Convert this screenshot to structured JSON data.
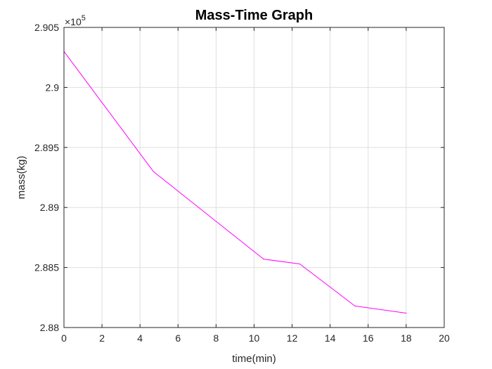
{
  "chart_data": {
    "type": "line",
    "title": "Mass-Time Graph",
    "xlabel": "time(min)",
    "ylabel": "mass(kg)",
    "xlim": [
      0,
      20
    ],
    "ylim": [
      2.88,
      2.905
    ],
    "xticks": [
      0,
      2,
      4,
      6,
      8,
      10,
      12,
      14,
      16,
      18,
      20
    ],
    "xtick_labels": [
      "0",
      "2",
      "4",
      "6",
      "8",
      "10",
      "12",
      "14",
      "16",
      "18",
      "20"
    ],
    "yticks": [
      2.88,
      2.885,
      2.89,
      2.895,
      2.9,
      2.905
    ],
    "ytick_labels": [
      "2.88",
      "2.885",
      "2.89",
      "2.895",
      "2.9",
      "2.905"
    ],
    "y_exponent_label": "×10",
    "y_exponent_power": "5",
    "grid": true,
    "box": true,
    "series": [
      {
        "color": "#ff00ff",
        "x": [
          0,
          4.7,
          10.5,
          12.4,
          15.3,
          18
        ],
        "y": [
          2.903,
          2.893,
          2.8857,
          2.8853,
          2.8818,
          2.8812
        ]
      }
    ]
  }
}
